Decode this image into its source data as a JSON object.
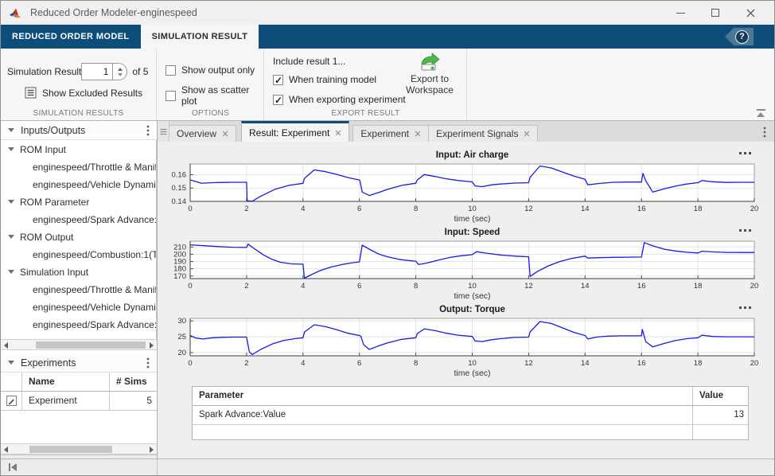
{
  "window": {
    "title": "Reduced Order Modeler-enginespeed"
  },
  "ribbon": {
    "tabs": [
      {
        "label": "REDUCED ORDER MODEL"
      },
      {
        "label": "SIMULATION RESULT"
      }
    ],
    "help_glyph": "?"
  },
  "toolstrip": {
    "simulation_results": {
      "label": "Simulation Result",
      "value": "1",
      "of_label": "of 5",
      "show_excluded_label": "Show Excluded Results",
      "section_label": "SIMULATION RESULTS"
    },
    "options": {
      "checkboxes": [
        {
          "label": "Show output only",
          "checked": false
        },
        {
          "label": "Show as scatter plot",
          "checked": false
        }
      ],
      "section_label": "OPTIONS"
    },
    "export": {
      "include_label": "Include result 1...",
      "checkboxes": [
        {
          "label": "When training model",
          "checked": true
        },
        {
          "label": "When exporting experiment",
          "checked": true
        }
      ],
      "export_button_label": "Export to Workspace",
      "section_label": "EXPORT RESULT"
    }
  },
  "sidebar": {
    "inputs_outputs": {
      "title": "Inputs/Outputs",
      "tree": [
        {
          "label": "ROM Input",
          "group": true
        },
        {
          "label": "enginespeed/Throttle & Manif",
          "group": false
        },
        {
          "label": "enginespeed/Vehicle Dynami",
          "group": false
        },
        {
          "label": "ROM Parameter",
          "group": true
        },
        {
          "label": "enginespeed/Spark Advance:",
          "group": false
        },
        {
          "label": "ROM Output",
          "group": true
        },
        {
          "label": "enginespeed/Combustion:1(T",
          "group": false
        },
        {
          "label": "Simulation Input",
          "group": true
        },
        {
          "label": "enginespeed/Throttle & Manif",
          "group": false
        },
        {
          "label": "enginespeed/Vehicle Dynami",
          "group": false
        },
        {
          "label": "enginespeed/Spark Advance:",
          "group": false
        }
      ]
    },
    "experiments": {
      "title": "Experiments",
      "columns": {
        "name": "Name",
        "sims": "# Sims"
      },
      "rows": [
        {
          "name": "Experiment",
          "sims": "5"
        }
      ]
    }
  },
  "docarea": {
    "tabs": [
      {
        "label": "Overview"
      },
      {
        "label": "Result: Experiment",
        "selected": true
      },
      {
        "label": "Experiment"
      },
      {
        "label": "Experiment Signals"
      }
    ],
    "param_table": {
      "columns": {
        "parameter": "Parameter",
        "value": "Value"
      },
      "rows": [
        {
          "parameter": "Spark Advance:Value",
          "value": "13"
        }
      ]
    }
  },
  "colors": {
    "accent_blue": "#0d4d7a",
    "line_blue": "#1a1ae6"
  },
  "chart_data": [
    {
      "type": "line",
      "title": "Input: Air charge",
      "xlabel": "time (sec)",
      "xlim": [
        0,
        20
      ],
      "ylim": [
        0.14,
        0.168
      ],
      "xticks": [
        0,
        2,
        4,
        6,
        8,
        10,
        12,
        14,
        16,
        18,
        20
      ],
      "yticks": [
        0.14,
        0.15,
        0.16
      ],
      "ytick_labels": [
        "0.14",
        "0.15",
        "0.16"
      ],
      "line_color": "#1a1ae6",
      "grid": true,
      "x": [
        0,
        0.15,
        0.4,
        0.8,
        1.2,
        1.6,
        2,
        2.02,
        2.2,
        2.5,
        3,
        3.5,
        4,
        4.05,
        4.4,
        4.8,
        5.2,
        5.6,
        6,
        6.02,
        6.1,
        6.35,
        6.7,
        7,
        7.5,
        8,
        8.05,
        8.3,
        8.7,
        9,
        9.5,
        10,
        10.1,
        10.35,
        10.7,
        11,
        11.5,
        12,
        12.05,
        12.4,
        12.8,
        13.2,
        13.6,
        14,
        14.1,
        14.5,
        15,
        15.5,
        16,
        16.05,
        16.15,
        16.4,
        16.8,
        17.2,
        17.6,
        18,
        18.15,
        18.5,
        19,
        19.5,
        20
      ],
      "y": [
        0.156,
        0.1552,
        0.1536,
        0.154,
        0.1542,
        0.1543,
        0.1543,
        0.1405,
        0.1401,
        0.1438,
        0.149,
        0.152,
        0.1535,
        0.1572,
        0.1636,
        0.1622,
        0.1602,
        0.1578,
        0.156,
        0.1553,
        0.147,
        0.1444,
        0.1468,
        0.149,
        0.152,
        0.1536,
        0.156,
        0.1601,
        0.1586,
        0.1572,
        0.1556,
        0.1546,
        0.1516,
        0.151,
        0.1524,
        0.153,
        0.1537,
        0.154,
        0.158,
        0.1665,
        0.165,
        0.162,
        0.159,
        0.1565,
        0.1524,
        0.1534,
        0.1543,
        0.1545,
        0.1545,
        0.161,
        0.1555,
        0.147,
        0.1494,
        0.1514,
        0.153,
        0.154,
        0.1556,
        0.1547,
        0.1542,
        0.1543,
        0.1543
      ]
    },
    {
      "type": "line",
      "title": "Input: Speed",
      "xlabel": "time (sec)",
      "xlim": [
        0,
        20
      ],
      "ylim": [
        166.5,
        218
      ],
      "xticks": [
        0,
        2,
        4,
        6,
        8,
        10,
        12,
        14,
        16,
        18,
        20
      ],
      "yticks": [
        170,
        180,
        190,
        200,
        210
      ],
      "ytick_labels": [
        "170",
        "180",
        "190",
        "200",
        "210"
      ],
      "line_color": "#1a1ae6",
      "grid": true,
      "x": [
        0,
        0.5,
        1,
        1.5,
        2,
        2.05,
        2.3,
        2.6,
        2.9,
        3.2,
        3.6,
        4,
        4.05,
        4.3,
        4.6,
        5,
        5.4,
        5.7,
        6,
        6.1,
        6.4,
        6.7,
        7,
        7.4,
        7.7,
        8,
        8.1,
        8.4,
        8.8,
        9.2,
        9.6,
        10,
        10.15,
        10.5,
        11,
        11.5,
        12,
        12.05,
        12.3,
        12.7,
        13.1,
        13.5,
        14,
        14.1,
        14.5,
        15,
        15.5,
        16,
        16.1,
        16.4,
        16.8,
        17.2,
        17.6,
        18,
        18.15,
        18.5,
        19,
        19.5,
        20
      ],
      "y": [
        213,
        211.8,
        210.5,
        209.7,
        209.3,
        214,
        207,
        199,
        193,
        189,
        186.8,
        186.3,
        167,
        172,
        177.5,
        182.5,
        186,
        188,
        189.5,
        212.5,
        206,
        200,
        196.5,
        193,
        191.5,
        190.5,
        185.8,
        188,
        192,
        195.5,
        198,
        199.5,
        203.5,
        201.5,
        199,
        197.5,
        196.5,
        169.5,
        176,
        184,
        190,
        194,
        197.5,
        194.8,
        195.3,
        195.8,
        196,
        196.2,
        216,
        211.5,
        207,
        204.5,
        202.8,
        201.8,
        204.2,
        203.3,
        202.6,
        202.4,
        202.4
      ]
    },
    {
      "type": "line",
      "title": "Output: Torque",
      "xlabel": "time (sec)",
      "xlim": [
        0,
        20
      ],
      "ylim": [
        19,
        30.8
      ],
      "xticks": [
        0,
        2,
        4,
        6,
        8,
        10,
        12,
        14,
        16,
        18,
        20
      ],
      "yticks": [
        20,
        25,
        30
      ],
      "ytick_labels": [
        "20",
        "25",
        "30"
      ],
      "line_color": "#1a1ae6",
      "grid": true,
      "x": [
        0,
        0.2,
        0.45,
        0.8,
        1.2,
        1.6,
        2,
        2.1,
        2.2,
        2.5,
        2.9,
        3.3,
        3.7,
        4,
        4.05,
        4.4,
        4.8,
        5.2,
        5.6,
        6,
        6.05,
        6.15,
        6.35,
        6.7,
        7,
        7.5,
        8,
        8.05,
        8.3,
        8.7,
        9.1,
        9.5,
        10,
        10.1,
        10.35,
        10.7,
        11,
        11.5,
        12,
        12.05,
        12.4,
        12.8,
        13.2,
        13.6,
        14,
        14.1,
        14.4,
        14.8,
        15.3,
        16,
        16.03,
        16.15,
        16.4,
        16.8,
        17.2,
        17.6,
        18,
        18.15,
        18.5,
        19,
        19.5,
        20
      ],
      "y": [
        25.4,
        24.6,
        24.3,
        24.7,
        24.85,
        24.9,
        24.9,
        20.2,
        19.4,
        21,
        22.7,
        23.8,
        24.4,
        24.7,
        26.5,
        28.8,
        28.2,
        27.2,
        26.1,
        25.4,
        25.2,
        22.5,
        21,
        22.2,
        23.1,
        24.2,
        24.7,
        26,
        27.5,
        26.9,
        26.1,
        25.5,
        25.1,
        23.7,
        23.5,
        24.1,
        24.4,
        24.8,
        24.9,
        26.5,
        29.8,
        29.2,
        27.8,
        26.4,
        25.4,
        24.3,
        24.9,
        25.2,
        25.3,
        25.3,
        27.3,
        23.5,
        21.8,
        22.9,
        23.8,
        24.4,
        24.7,
        25.5,
        25.1,
        25,
        25,
        25
      ]
    }
  ]
}
